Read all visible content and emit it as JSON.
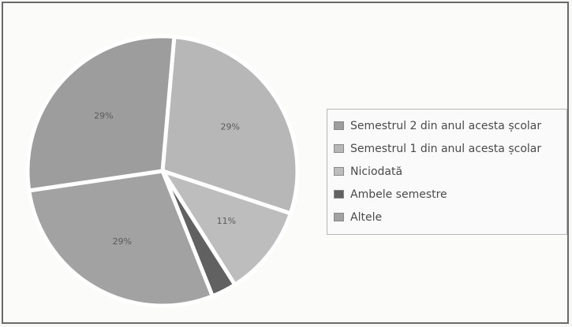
{
  "chart_data": {
    "type": "pie",
    "title": "",
    "legend_position": "right",
    "slices": [
      {
        "name": "Semestrul 2 din anul acesta școlar",
        "value": 29,
        "label": "29%",
        "color": "#9d9d9d"
      },
      {
        "name": "Semestrul 1 din anul acesta școlar",
        "value": 29,
        "label": "29%",
        "color": "#b7b7b7"
      },
      {
        "name": "Niciodată",
        "value": 11,
        "label": "11%",
        "color": "#bdbdbd"
      },
      {
        "name": "Ambele semestre",
        "value": 3,
        "label": "",
        "color": "#616161"
      },
      {
        "name": "Altele",
        "value": 29,
        "label": "29%",
        "color": "#a2a2a2"
      }
    ]
  }
}
